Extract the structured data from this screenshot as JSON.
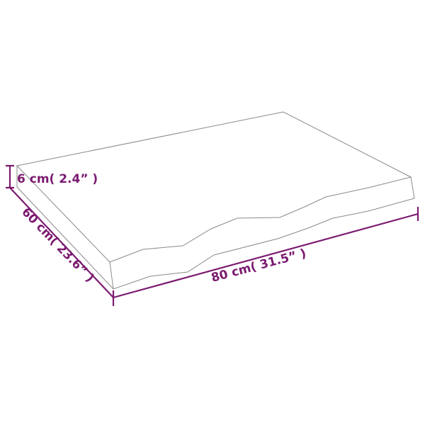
{
  "dimensions": {
    "height": "6 cm( 2.4” )",
    "depth": "60 cm( 23.6” )",
    "width": "80 cm( 31.5” )"
  },
  "colors": {
    "dimension": "#7b1a70",
    "outline": "#8a8a8a"
  }
}
